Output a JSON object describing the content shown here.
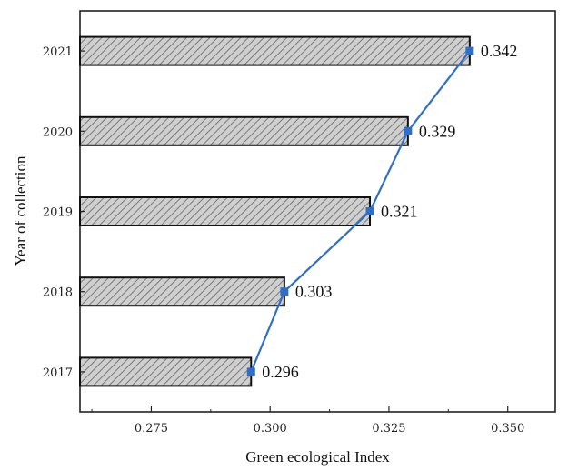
{
  "chart_data": {
    "type": "bar",
    "orientation": "horizontal",
    "title": "",
    "xlabel": "Green ecological Index",
    "ylabel": "Year of collection",
    "categories": [
      "2017",
      "2018",
      "2019",
      "2020",
      "2021"
    ],
    "values": [
      0.296,
      0.303,
      0.321,
      0.329,
      0.342
    ],
    "data_labels": [
      "0.296",
      "0.303",
      "0.321",
      "0.329",
      "0.342"
    ],
    "xlim": [
      0.26,
      0.36
    ],
    "xticks": [
      0.275,
      0.3,
      0.325,
      0.35
    ],
    "xtick_labels": [
      "0.275",
      "0.300",
      "0.325",
      "0.350"
    ],
    "overlay_line": {
      "type": "line",
      "markers": "square",
      "values": [
        0.296,
        0.303,
        0.321,
        0.329,
        0.342
      ]
    },
    "grid": false,
    "legend": "none",
    "colors": {
      "bar_fill": "#c8c8c8",
      "bar_hatch": "#7a7a7a",
      "bar_edge": "#111111",
      "line": "#2f6fc8",
      "axis": "#222222"
    }
  }
}
